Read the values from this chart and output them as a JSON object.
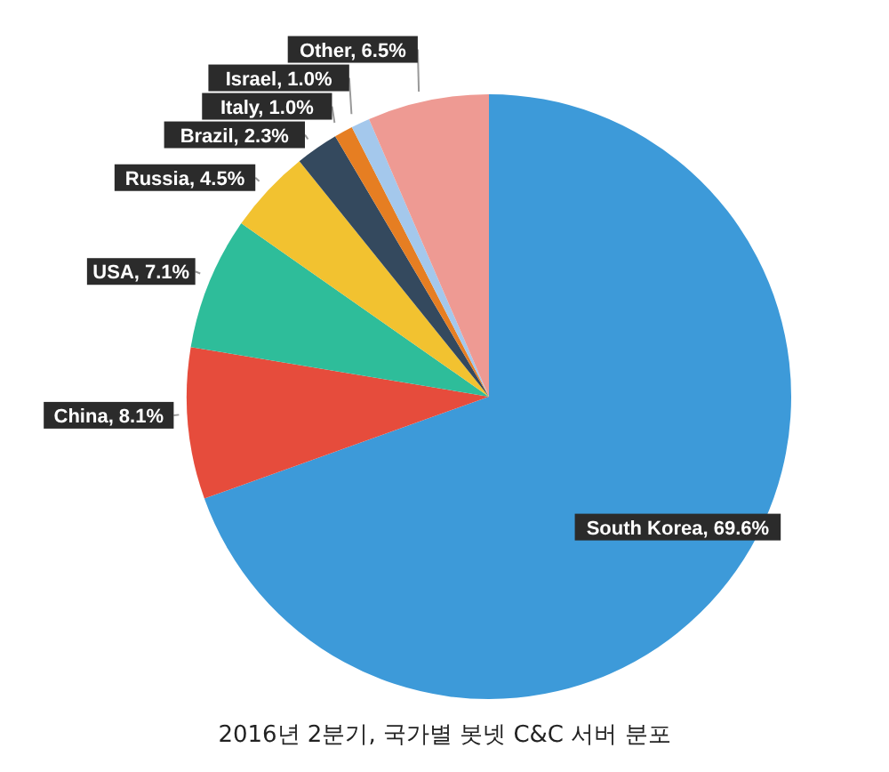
{
  "chart_data": {
    "type": "pie",
    "title": "2016년 2분기, 국가별 봇넷 C&C 서버 분포",
    "categories": [
      "South Korea",
      "China",
      "USA",
      "Russia",
      "Brazil",
      "Italy",
      "Israel",
      "Other"
    ],
    "values": [
      69.6,
      8.1,
      7.1,
      4.5,
      2.3,
      1.0,
      1.0,
      6.5
    ],
    "colors": [
      "#3d9ad9",
      "#e64c3c",
      "#2ebd9a",
      "#f2c230",
      "#34495e",
      "#e67e22",
      "#a4c8ec",
      "#ee9a93"
    ],
    "value_labels": [
      "69.6%",
      "8.1%",
      "7.1%",
      "4.5%",
      "2.3%",
      "1.0%",
      "1.0%",
      "6.5%"
    ]
  }
}
